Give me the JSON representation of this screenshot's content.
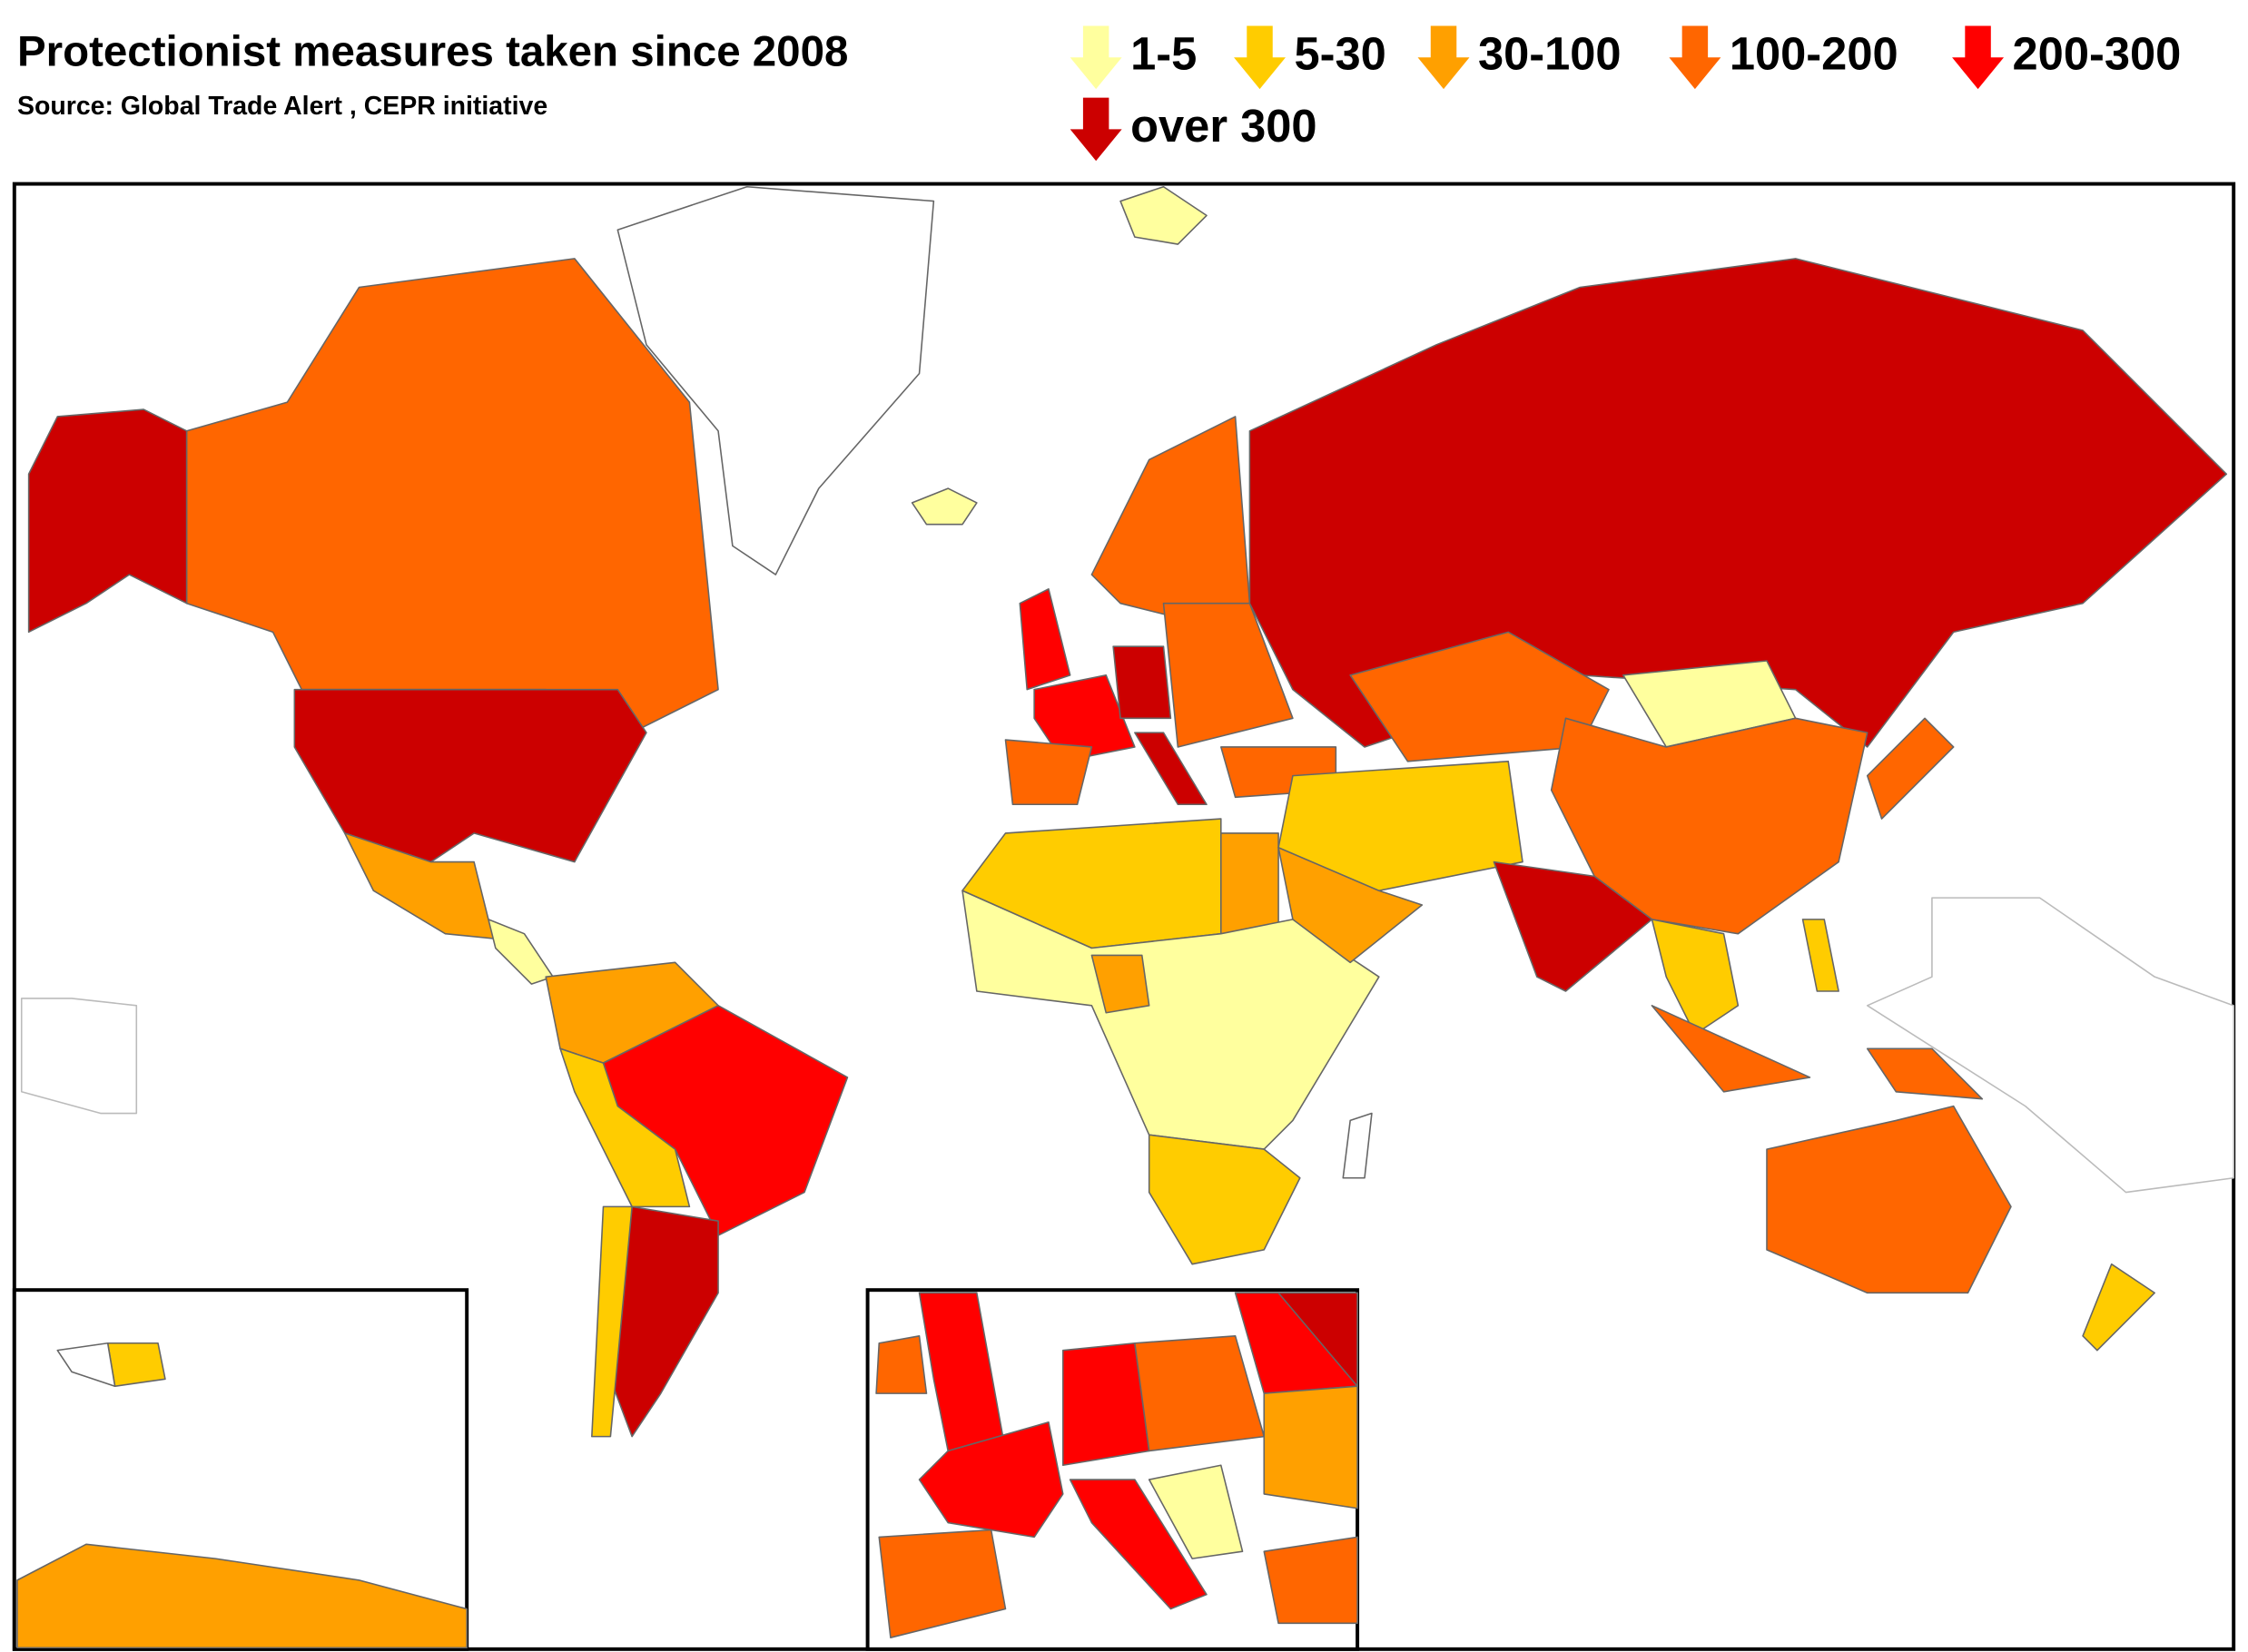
{
  "title": "Protectionist measures taken since 2008",
  "source": "Source: Global Trade Alert , CEPR initiative",
  "legend": [
    {
      "label": "1-5",
      "color": "#ffff9e"
    },
    {
      "label": "5-30",
      "color": "#ffcc00"
    },
    {
      "label": "30-100",
      "color": "#ffa000"
    },
    {
      "label": "100-200",
      "color": "#ff6600"
    },
    {
      "label": "200-300",
      "color": "#ff0000"
    },
    {
      "label": "over 300",
      "color": "#cc0000"
    }
  ]
}
